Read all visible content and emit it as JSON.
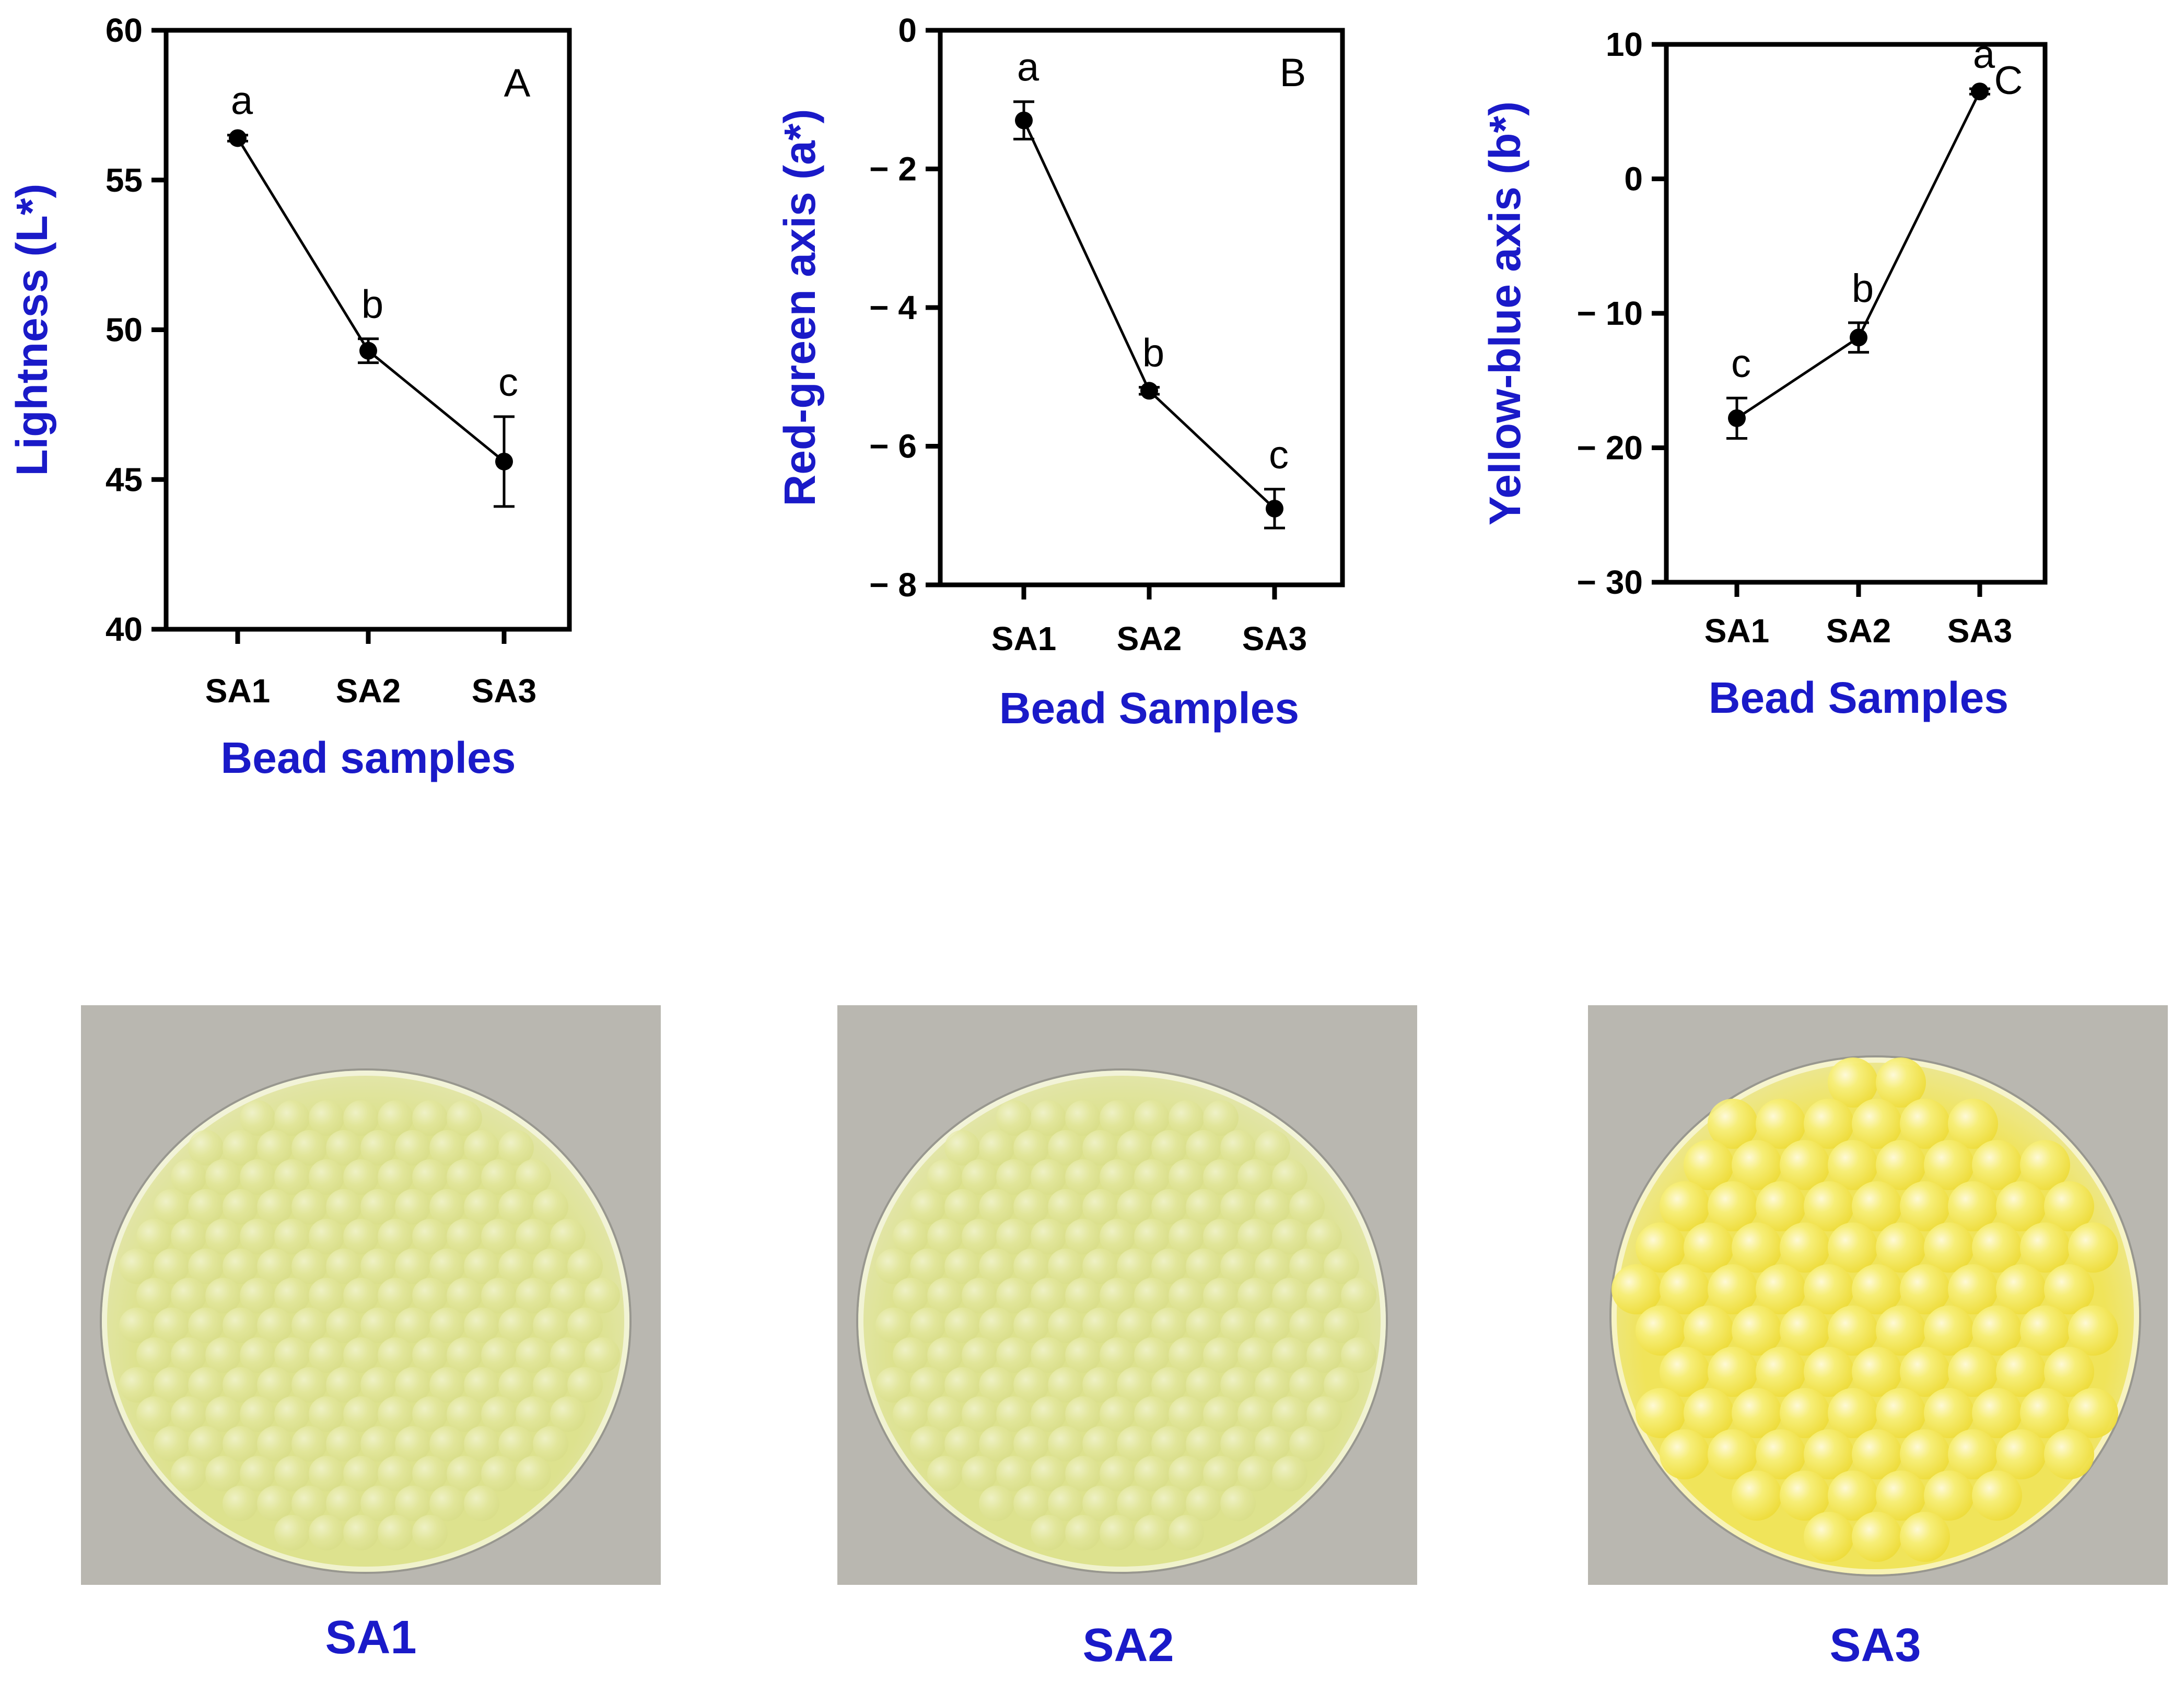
{
  "chart_data": [
    {
      "type": "line",
      "panel_tag": "A",
      "categories": [
        "SA1",
        "SA2",
        "SA3"
      ],
      "values": [
        56.4,
        49.3,
        45.6
      ],
      "error": [
        0.1,
        0.4,
        1.5
      ],
      "letters": [
        "a",
        "b",
        "c"
      ],
      "ylim": [
        40,
        60
      ],
      "yticks": [
        40,
        45,
        50,
        55,
        60
      ],
      "ytick_labels": [
        "40",
        "45",
        "50",
        "55",
        "60"
      ],
      "ylabel": "Lightness (L*)",
      "xlabel": "Bead samples",
      "grid": false
    },
    {
      "type": "line",
      "panel_tag": "B",
      "categories": [
        "SA1",
        "SA2",
        "SA3"
      ],
      "values": [
        -1.3,
        -5.2,
        -6.9
      ],
      "error": [
        0.27,
        0.05,
        0.28
      ],
      "letters": [
        "a",
        "b",
        "c"
      ],
      "ylim": [
        -8,
        0
      ],
      "yticks": [
        -8,
        -6,
        -4,
        -2,
        0
      ],
      "ytick_labels": [
        "− 8",
        "− 6",
        "− 4",
        "− 2",
        "0"
      ],
      "ylabel": "Red-green axis (a*)",
      "xlabel": "Bead Samples",
      "grid": false
    },
    {
      "type": "line",
      "panel_tag": "C",
      "categories": [
        "SA1",
        "SA2",
        "SA3"
      ],
      "values": [
        -17.8,
        -11.8,
        6.5
      ],
      "error": [
        1.5,
        1.1,
        0.2
      ],
      "letters": [
        "c",
        "b",
        "a"
      ],
      "ylim": [
        -30,
        10
      ],
      "yticks": [
        -30,
        -20,
        -10,
        0,
        10
      ],
      "ytick_labels": [
        "− 30",
        "− 20",
        "− 10",
        "0",
        "10"
      ],
      "ylabel": "Yellow-blue axis (b*)",
      "xlabel": "Bead Samples",
      "grid": false
    }
  ],
  "photos": [
    {
      "label": "SA1",
      "dish_color": "#dde28e"
    },
    {
      "label": "SA2",
      "dish_color": "#dde28e"
    },
    {
      "label": "SA3",
      "dish_color": "#f0e45a"
    }
  ],
  "colors": {
    "axis_title": "#1a1ac8",
    "line": "#000000"
  }
}
